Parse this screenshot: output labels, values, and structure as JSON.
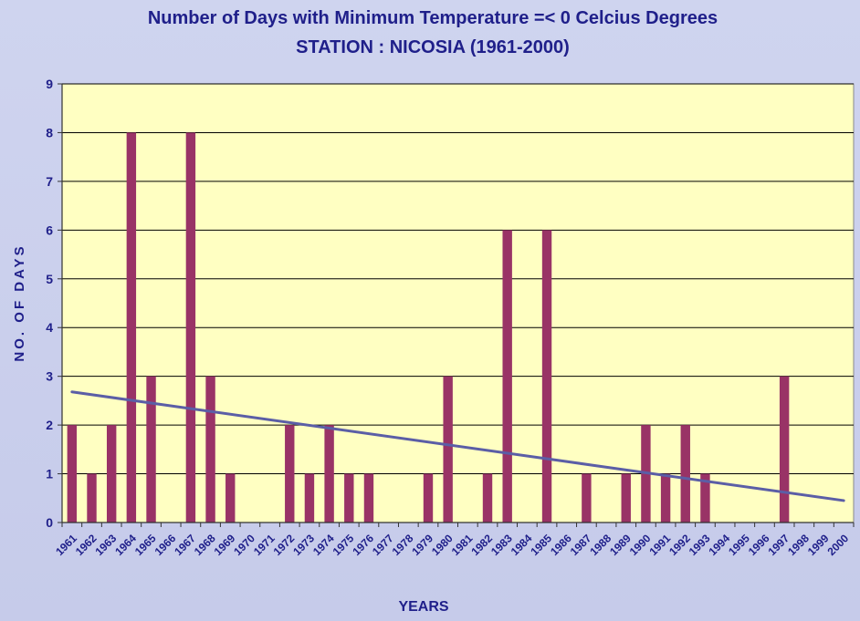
{
  "chart_data": {
    "type": "bar",
    "title": "Number of Days with Minimum Temperature =< 0 Celcius Degrees",
    "subtitle": "STATION : NICOSIA (1961-2000)",
    "xlabel": "YEARS",
    "ylabel": "NO. OF DAYS",
    "ylim": [
      0,
      9
    ],
    "yticks": [
      "0",
      "1",
      "2",
      "3",
      "4",
      "5",
      "6",
      "7",
      "8",
      "9"
    ],
    "grid": true,
    "categories": [
      "1961",
      "1962",
      "1963",
      "1964",
      "1965",
      "1966",
      "1967",
      "1968",
      "1969",
      "1970",
      "1971",
      "1972",
      "1973",
      "1974",
      "1975",
      "1976",
      "1977",
      "1978",
      "1979",
      "1980",
      "1981",
      "1982",
      "1983",
      "1984",
      "1985",
      "1986",
      "1987",
      "1988",
      "1989",
      "1990",
      "1991",
      "1992",
      "1993",
      "1994",
      "1995",
      "1996",
      "1997",
      "1998",
      "1999",
      "2000"
    ],
    "values": [
      2,
      1,
      2,
      8,
      3,
      0,
      8,
      3,
      1,
      0,
      0,
      2,
      1,
      2,
      1,
      1,
      0,
      0,
      1,
      3,
      0,
      1,
      6,
      0,
      6,
      0,
      1,
      0,
      1,
      2,
      1,
      2,
      1,
      0,
      0,
      0,
      3,
      0,
      0,
      0
    ],
    "trendline": {
      "type": "linear",
      "start": 2.68,
      "end": 0.45
    },
    "colors": {
      "bar": "#993366",
      "trend": "#5b5ea6",
      "plot_bg": "#ffffc2",
      "text": "#1f1f8a"
    }
  }
}
